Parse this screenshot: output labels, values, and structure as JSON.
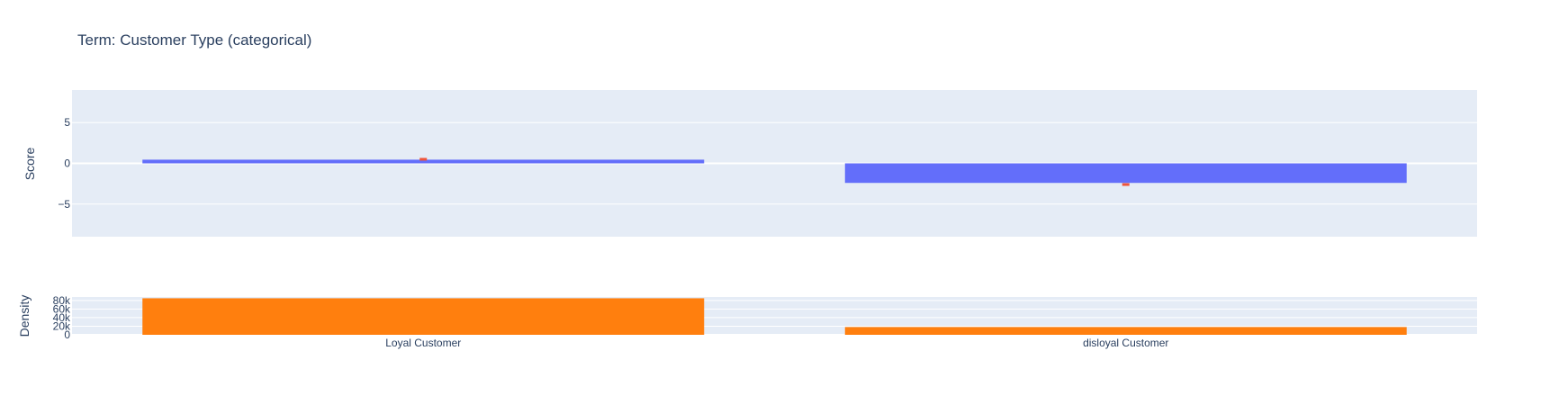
{
  "chart_data": [
    {
      "type": "bar",
      "panel": "score",
      "title": "Term: Customer Type (categorical)",
      "categories": [
        "Loyal Customer",
        "disloyal Customer"
      ],
      "values": [
        0.45,
        -2.4
      ],
      "error_markers": [
        0.5,
        -2.6
      ],
      "ylabel": "Score",
      "ylim": [
        -9,
        9
      ],
      "yticks": [
        5,
        0,
        -5
      ],
      "ytick_labels": [
        "5",
        "0",
        "−5"
      ],
      "grid": true,
      "colors": {
        "bar": "#636efa",
        "marker": "#ef553b",
        "plot_bg": "#e5ecf6",
        "text": "#2a3f5f"
      }
    },
    {
      "type": "bar",
      "panel": "density",
      "categories": [
        "Loyal Customer",
        "disloyal Customer"
      ],
      "values": [
        85000,
        18000
      ],
      "ylabel": "Density",
      "ylim": [
        0,
        88000
      ],
      "yticks": [
        80000,
        60000,
        40000,
        20000,
        0
      ],
      "ytick_labels": [
        "80k",
        "60k",
        "40k",
        "20k",
        "0"
      ],
      "xtick_labels": [
        "Loyal Customer",
        "disloyal Customer"
      ],
      "grid": true,
      "colors": {
        "bar": "#ff7f0e",
        "plot_bg": "#e5ecf6",
        "text": "#2a3f5f"
      }
    }
  ]
}
